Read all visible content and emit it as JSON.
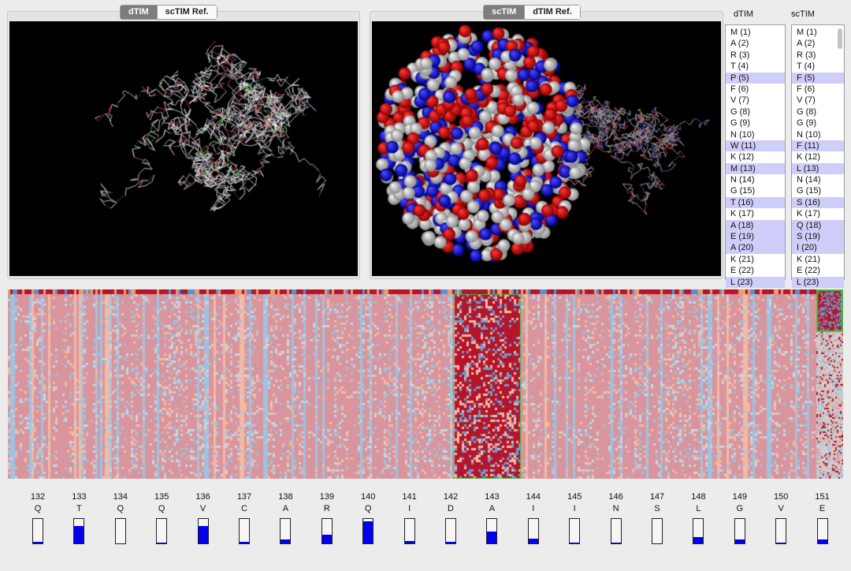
{
  "left_viewer": {
    "tabs": [
      {
        "label": "dTIM",
        "active": true
      },
      {
        "label": "scTIM Ref.",
        "active": false
      }
    ]
  },
  "right_viewer": {
    "tabs": [
      {
        "label": "scTIM",
        "active": true
      },
      {
        "label": "dTIM Ref.",
        "active": false
      }
    ]
  },
  "alignment": {
    "dTIM": {
      "label": "dTIM",
      "items": [
        "M (1)",
        "A (2)",
        "R (3)",
        "T (4)",
        "P (5)",
        "F (6)",
        "V (7)",
        "G (8)",
        "G (9)",
        "N (10)",
        "W (11)",
        "K (12)",
        "M (13)",
        "N (14)",
        "G (15)",
        "T (16)",
        "K (17)",
        "A (18)",
        "E (19)",
        "A (20)",
        "K (21)",
        "E (22)",
        "L (23)"
      ]
    },
    "scTIM": {
      "label": "scTIM",
      "items": [
        "M (1)",
        "A (2)",
        "R (3)",
        "T (4)",
        "F (5)",
        "F (6)",
        "V (7)",
        "G (8)",
        "G (9)",
        "N (10)",
        "F (11)",
        "K (12)",
        "L (13)",
        "N (14)",
        "G (15)",
        "S (16)",
        "K (17)",
        "Q (18)",
        "S (19)",
        "I (20)",
        "K (21)",
        "E (22)",
        "L (23)"
      ]
    },
    "highlighted_rows": [
      4,
      10,
      12,
      15,
      17,
      18,
      19,
      22
    ],
    "highlight_color": "#cfcdf9"
  },
  "colors": {
    "bar_fill": "#0000ee",
    "heat_high": "#b5152b",
    "heat_mid": "#d9959d",
    "heat_low": "#9dc3e0",
    "heat_peach": "#f4b9a2",
    "selection": "#3cc83c"
  },
  "positions": [
    {
      "num": "132",
      "aa": "Q",
      "level": 0.08
    },
    {
      "num": "133",
      "aa": "T",
      "level": 0.72
    },
    {
      "num": "134",
      "aa": "Q",
      "level": 0
    },
    {
      "num": "135",
      "aa": "Q",
      "level": 0.03
    },
    {
      "num": "136",
      "aa": "V",
      "level": 0.72
    },
    {
      "num": "137",
      "aa": "C",
      "level": 0.08
    },
    {
      "num": "138",
      "aa": "A",
      "level": 0.15
    },
    {
      "num": "139",
      "aa": "R",
      "level": 0.35
    },
    {
      "num": "140",
      "aa": "Q",
      "level": 0.9
    },
    {
      "num": "141",
      "aa": "I",
      "level": 0.1
    },
    {
      "num": "142",
      "aa": "D",
      "level": 0.05
    },
    {
      "num": "143",
      "aa": "A",
      "level": 0.5
    },
    {
      "num": "144",
      "aa": "I",
      "level": 0.18
    },
    {
      "num": "145",
      "aa": "I",
      "level": 0.02
    },
    {
      "num": "146",
      "aa": "N",
      "level": 0.03
    },
    {
      "num": "147",
      "aa": "S",
      "level": 0
    },
    {
      "num": "148",
      "aa": "L",
      "level": 0.25
    },
    {
      "num": "149",
      "aa": "G",
      "level": 0.15
    },
    {
      "num": "150",
      "aa": "V",
      "level": 0.03
    },
    {
      "num": "151",
      "aa": "E",
      "level": 0.15
    }
  ]
}
